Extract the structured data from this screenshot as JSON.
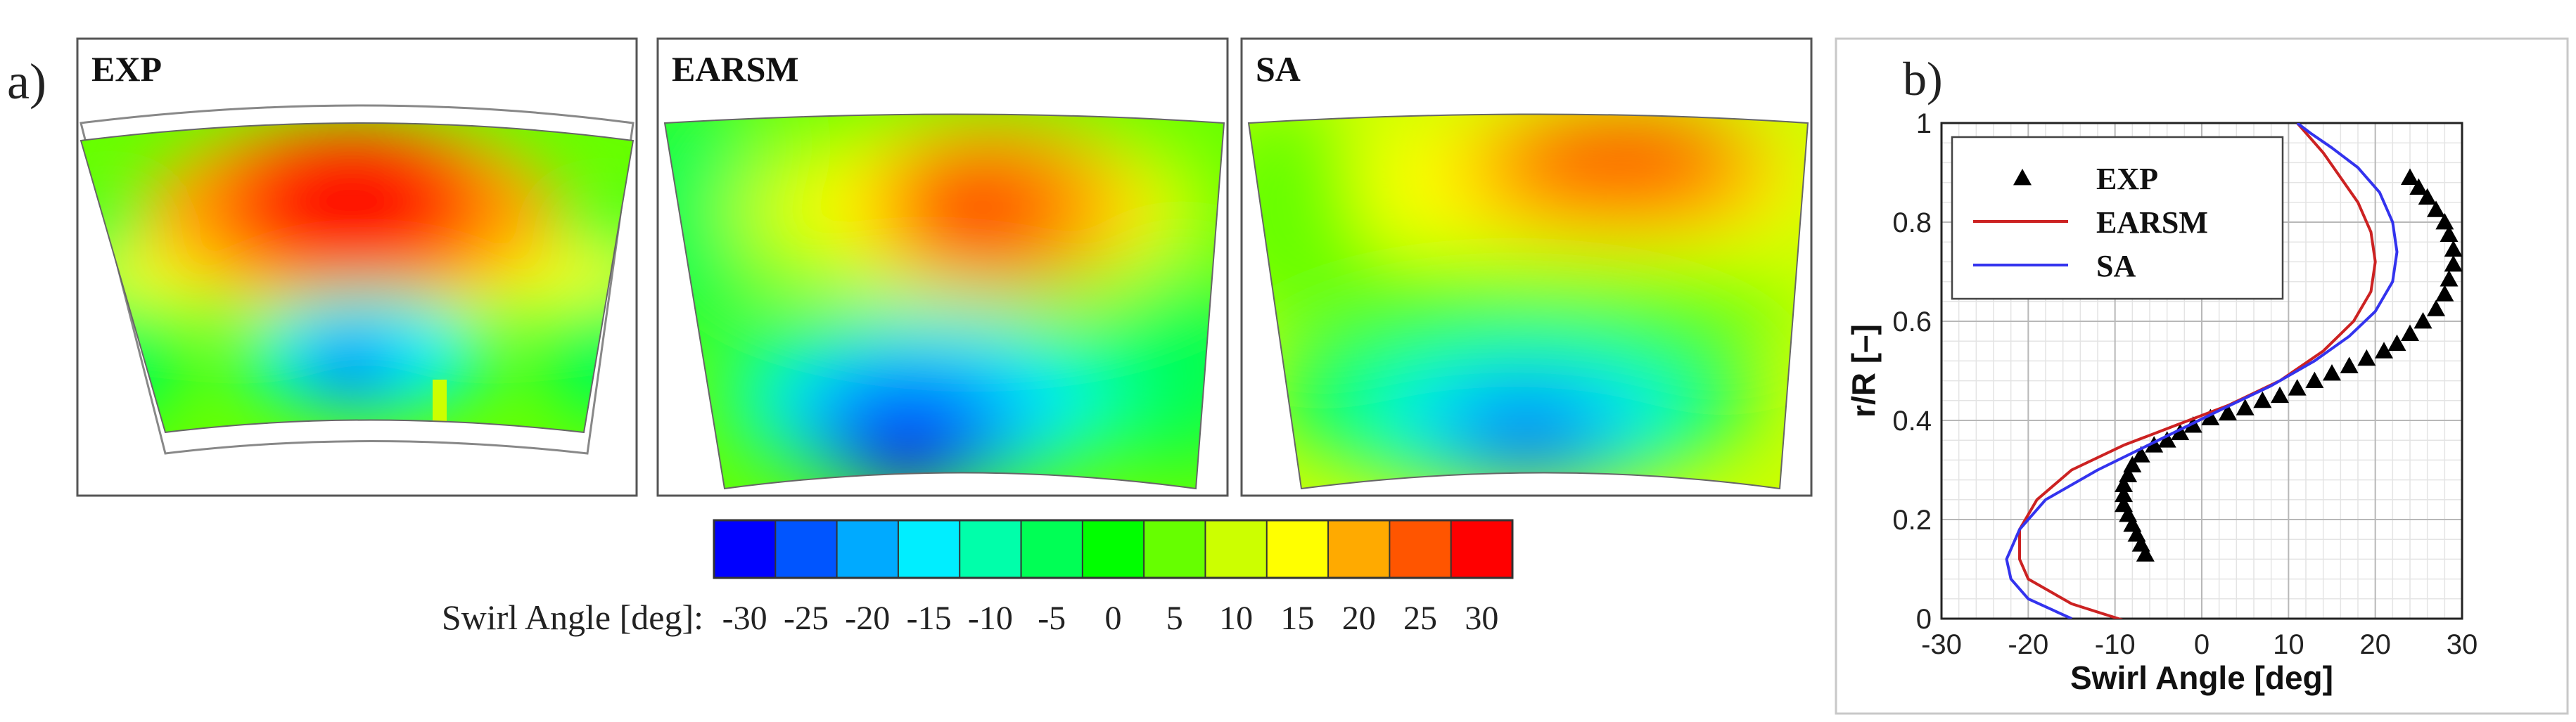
{
  "panel_a": {
    "label": "a)",
    "panels": [
      {
        "title": "EXP"
      },
      {
        "title": "EARSM"
      },
      {
        "title": "SA"
      }
    ],
    "colorbar": {
      "title": "Swirl Angle [deg]:",
      "levels": [
        -30,
        -25,
        -20,
        -15,
        -10,
        -5,
        0,
        5,
        10,
        15,
        20,
        25,
        30
      ],
      "colors": [
        "#0000ff",
        "#0055ff",
        "#00aaff",
        "#00eeff",
        "#00ffaa",
        "#00ff55",
        "#00ff00",
        "#66ff00",
        "#ccff00",
        "#ffff00",
        "#ffaa00",
        "#ff5500",
        "#ff0000"
      ]
    }
  },
  "chart_data": {
    "type": "line",
    "panel_label": "b)",
    "title": "",
    "xlabel": "Swirl Angle [deg]",
    "ylabel": "r/R [–]",
    "xlim": [
      -30,
      30
    ],
    "ylim": [
      0,
      1
    ],
    "xticks": [
      -30,
      -20,
      -10,
      0,
      10,
      20,
      30
    ],
    "yticks": [
      0,
      0.2,
      0.4,
      0.6,
      0.8,
      1
    ],
    "ytick_labels": [
      "0",
      "0.2",
      "0.4",
      "0.6",
      "0.8",
      "1"
    ],
    "grid": true,
    "legend_position": "top-left",
    "series": [
      {
        "name": "EXP",
        "style": "markers",
        "marker": "triangle",
        "color": "#000000",
        "x": [
          -6.5,
          -7,
          -7.5,
          -8,
          -8.5,
          -9,
          -9,
          -9,
          -8.5,
          -8,
          -7,
          -5.5,
          -4,
          -2.5,
          -1,
          1,
          3,
          5,
          7,
          9,
          11,
          13,
          15,
          17,
          19,
          21,
          22.5,
          24,
          25.5,
          27,
          28,
          28.5,
          29,
          29,
          28.5,
          28,
          27,
          26,
          25,
          24
        ],
        "y": [
          0.13,
          0.15,
          0.17,
          0.19,
          0.21,
          0.23,
          0.25,
          0.27,
          0.29,
          0.31,
          0.33,
          0.35,
          0.36,
          0.375,
          0.39,
          0.405,
          0.415,
          0.425,
          0.44,
          0.45,
          0.465,
          0.48,
          0.495,
          0.51,
          0.525,
          0.54,
          0.555,
          0.575,
          0.6,
          0.625,
          0.655,
          0.685,
          0.715,
          0.745,
          0.775,
          0.8,
          0.825,
          0.85,
          0.87,
          0.89
        ]
      },
      {
        "name": "EARSM",
        "style": "line",
        "color": "#cc2222",
        "x": [
          -6,
          -15,
          -20,
          -21,
          -21,
          -19,
          -15,
          -9,
          -3,
          3,
          9,
          14,
          17.5,
          19.5,
          20,
          19.5,
          18,
          16,
          14,
          12,
          11
        ],
        "y": [
          -0.02,
          0.03,
          0.08,
          0.12,
          0.18,
          0.24,
          0.3,
          0.35,
          0.39,
          0.43,
          0.48,
          0.54,
          0.6,
          0.66,
          0.72,
          0.78,
          0.84,
          0.89,
          0.94,
          0.98,
          1.0
        ]
      },
      {
        "name": "SA",
        "style": "line",
        "color": "#3333ee",
        "x": [
          -15,
          -20,
          -22,
          -22.5,
          -21,
          -18,
          -12,
          -5,
          2,
          8,
          13,
          17,
          20,
          22,
          22.5,
          22,
          20.5,
          18,
          15,
          12.5,
          11
        ],
        "y": [
          0.0,
          0.04,
          0.08,
          0.12,
          0.18,
          0.24,
          0.3,
          0.36,
          0.42,
          0.47,
          0.52,
          0.57,
          0.62,
          0.68,
          0.74,
          0.8,
          0.86,
          0.91,
          0.95,
          0.98,
          1.0
        ]
      }
    ]
  }
}
